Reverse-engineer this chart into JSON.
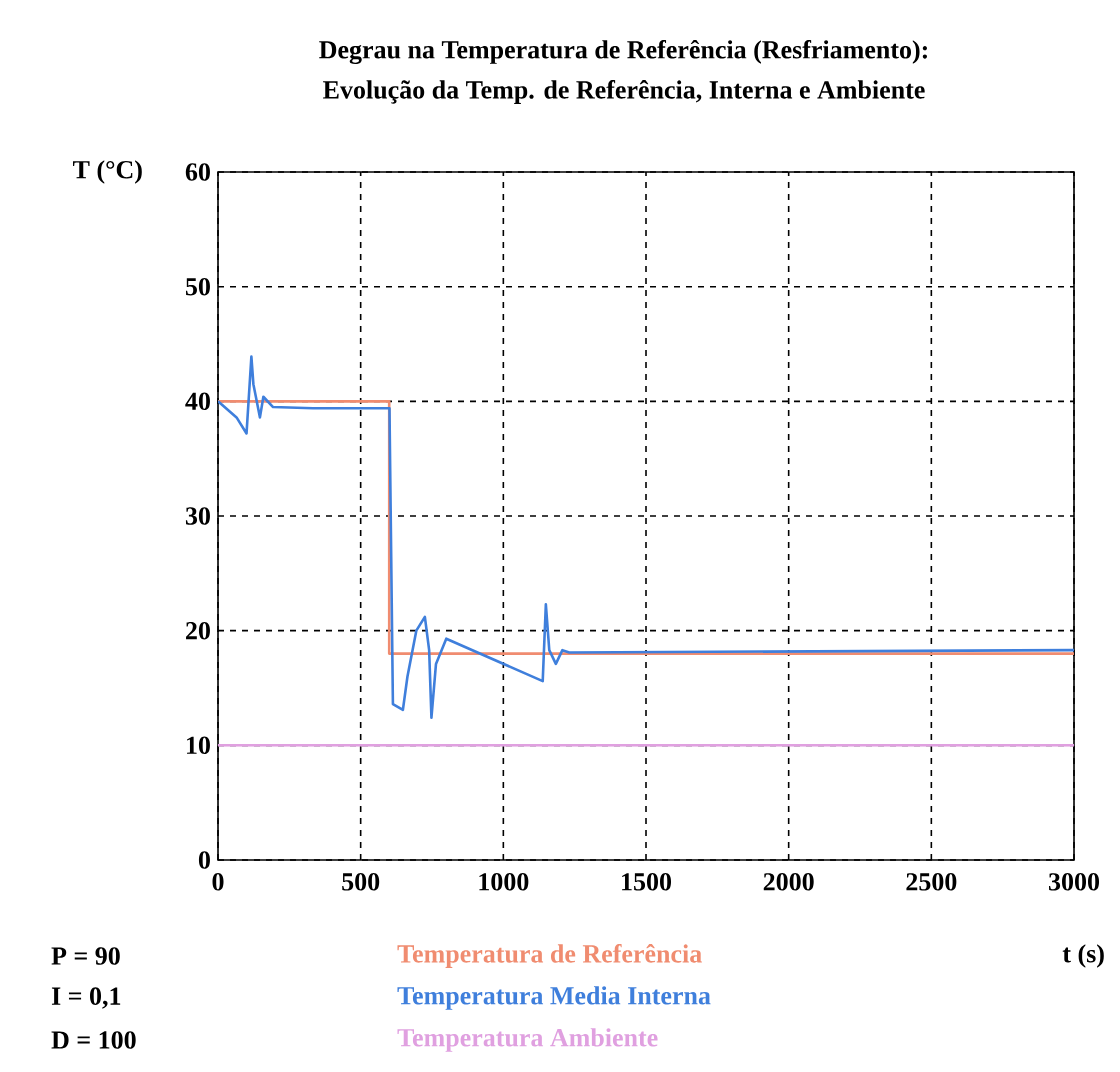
{
  "chart_data": {
    "type": "line",
    "title": "Degrau na Temperatura de Referência (Resfriamento):",
    "subtitle": "Evolução da Temp. de Referência, Interna e Ambiente",
    "xlabel": "t (s)",
    "ylabel": "T (°C)",
    "annotations": [
      "P = 90",
      "I = 0,1",
      "D = 100"
    ],
    "xlim": [
      0,
      3000
    ],
    "ylim": [
      0,
      60
    ],
    "xticks": [
      0,
      500,
      1000,
      1500,
      2000,
      2500,
      3000
    ],
    "yticks": [
      0,
      10,
      20,
      30,
      40,
      50,
      60
    ],
    "grid": true,
    "legend": "bottom",
    "marker": "none",
    "line_style": "solid",
    "series": [
      {
        "name": "Temperatura de Referência",
        "color": "#f08c70",
        "x": [
          0,
          600,
          600,
          3000
        ],
        "values": [
          40,
          40,
          18,
          18
        ]
      },
      {
        "name": "Temperatura Media Interna",
        "color": "#3f7fdc",
        "x": [
          0,
          65,
          100,
          117,
          124,
          147,
          159,
          193,
          333,
          601,
          613,
          648,
          664,
          695,
          725,
          740,
          748,
          764,
          800,
          1138,
          1149,
          1161,
          1184,
          1207,
          1231,
          3000
        ],
        "values": [
          40,
          38.6,
          37.2,
          43.9,
          41.5,
          38.6,
          40.4,
          39.5,
          39.4,
          39.4,
          13.6,
          13.1,
          16,
          20,
          21.2,
          18.3,
          12.4,
          17.1,
          19.3,
          15.6,
          22.3,
          18.3,
          17.1,
          18.3,
          18.1,
          18.3
        ]
      },
      {
        "name": "Temperatura Ambiente",
        "color": "#e0a0e0",
        "x": [
          0,
          3000
        ],
        "values": [
          10,
          10
        ]
      }
    ]
  }
}
